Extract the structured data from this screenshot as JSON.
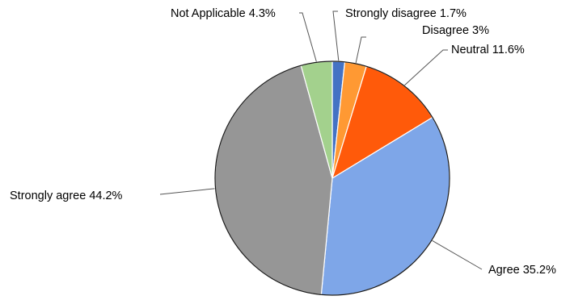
{
  "chart_data": {
    "type": "pie",
    "title": "",
    "start_angle_deg": 0,
    "direction": "clockwise",
    "slices": [
      {
        "label": "Strongly disagree 1.7%",
        "value": 1.7,
        "color": "#4472c4"
      },
      {
        "label": "Disagree 3%",
        "value": 3.0,
        "color": "#ff9933"
      },
      {
        "label": "Neutral 11.6%",
        "value": 11.6,
        "color": "#ff5a0a"
      },
      {
        "label": "Agree 35.2%",
        "value": 35.2,
        "color": "#7ea6e8"
      },
      {
        "label": "Strongly agree 44.2%",
        "value": 44.2,
        "color": "#969696"
      },
      {
        "label": "Not Applicable 4.3%",
        "value": 4.3,
        "color": "#a3d18d"
      }
    ],
    "labels_outside": true,
    "legend": "none"
  }
}
